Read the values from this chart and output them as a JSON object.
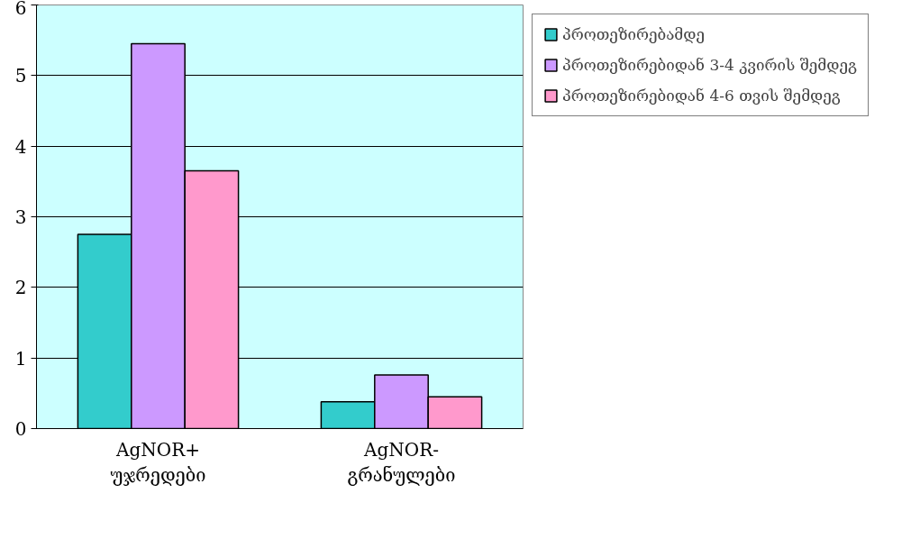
{
  "chart_data": {
    "type": "bar",
    "categories": [
      "AgNOR+ უჯრედები",
      "AgNOR- გრანულები"
    ],
    "series": [
      {
        "name": "პროთეზირებამდე",
        "color": "#33cccc",
        "values": [
          2.75,
          0.38
        ]
      },
      {
        "name": "პროთეზირებიდან 3-4 კვირის შემდეგ",
        "color": "#cc99ff",
        "values": [
          5.45,
          0.76
        ]
      },
      {
        "name": "პროთეზირებიდან 4-6 თვის შემდეგ",
        "color": "#ff99cc",
        "values": [
          3.65,
          0.45
        ]
      }
    ],
    "ylim": [
      0,
      6
    ],
    "yticks": [
      0,
      1,
      2,
      3,
      4,
      5,
      6
    ],
    "grid": "y",
    "legend": "right"
  }
}
